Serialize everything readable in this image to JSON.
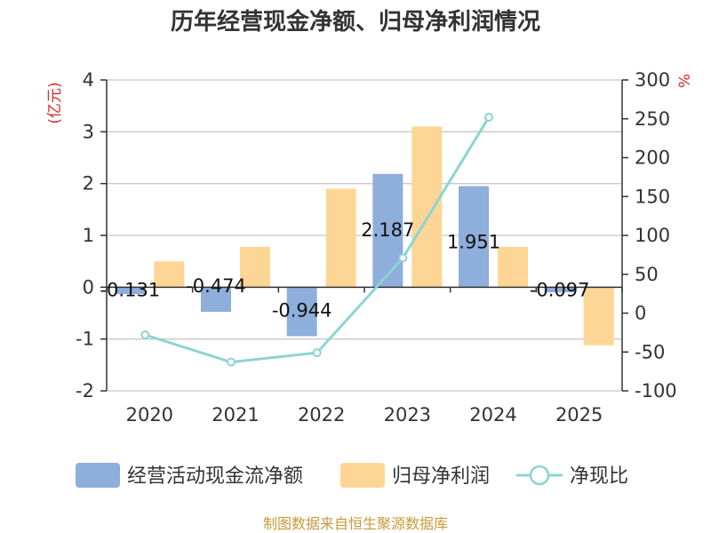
{
  "title": "历年经营现金净额、归母净利润情况",
  "source": "制图数据来自恒生聚源数据库",
  "colors": {
    "operating_cash": "#8eaedb",
    "net_profit": "#fdd695",
    "ratio_line": "#8dd4d4",
    "axis": "#333333",
    "grid": "#c8c8c8",
    "unit": "#d9282c",
    "source": "#c99a3b"
  },
  "chart_data": {
    "type": "bar+line",
    "categories": [
      "2020",
      "2021",
      "2022",
      "2023",
      "2024",
      "2025"
    ],
    "series": [
      {
        "name": "经营活动现金流净额",
        "type": "bar",
        "axis": "left",
        "values": [
          -0.131,
          -0.474,
          -0.944,
          2.187,
          1.951,
          -0.097
        ],
        "labels": [
          "-0.131",
          "-0.474",
          "-0.944",
          "2.187",
          "1.951",
          "-0.097"
        ]
      },
      {
        "name": "归母净利润",
        "type": "bar",
        "axis": "left",
        "values": [
          0.5,
          0.78,
          1.9,
          3.1,
          0.78,
          -1.12
        ]
      },
      {
        "name": "净现比",
        "type": "line",
        "axis": "right",
        "values": [
          -28,
          -63,
          -51,
          71,
          252,
          null
        ]
      }
    ],
    "left_axis": {
      "unit": "(亿元)",
      "ylim": [
        -2,
        4
      ],
      "ticks": [
        4,
        3,
        2,
        1,
        0,
        -1,
        -2
      ]
    },
    "right_axis": {
      "unit": "%",
      "ylim": [
        -100,
        300
      ],
      "ticks": [
        300,
        250,
        200,
        150,
        100,
        50,
        0,
        -50,
        -100
      ]
    },
    "grid": true,
    "legend_position": "bottom"
  }
}
